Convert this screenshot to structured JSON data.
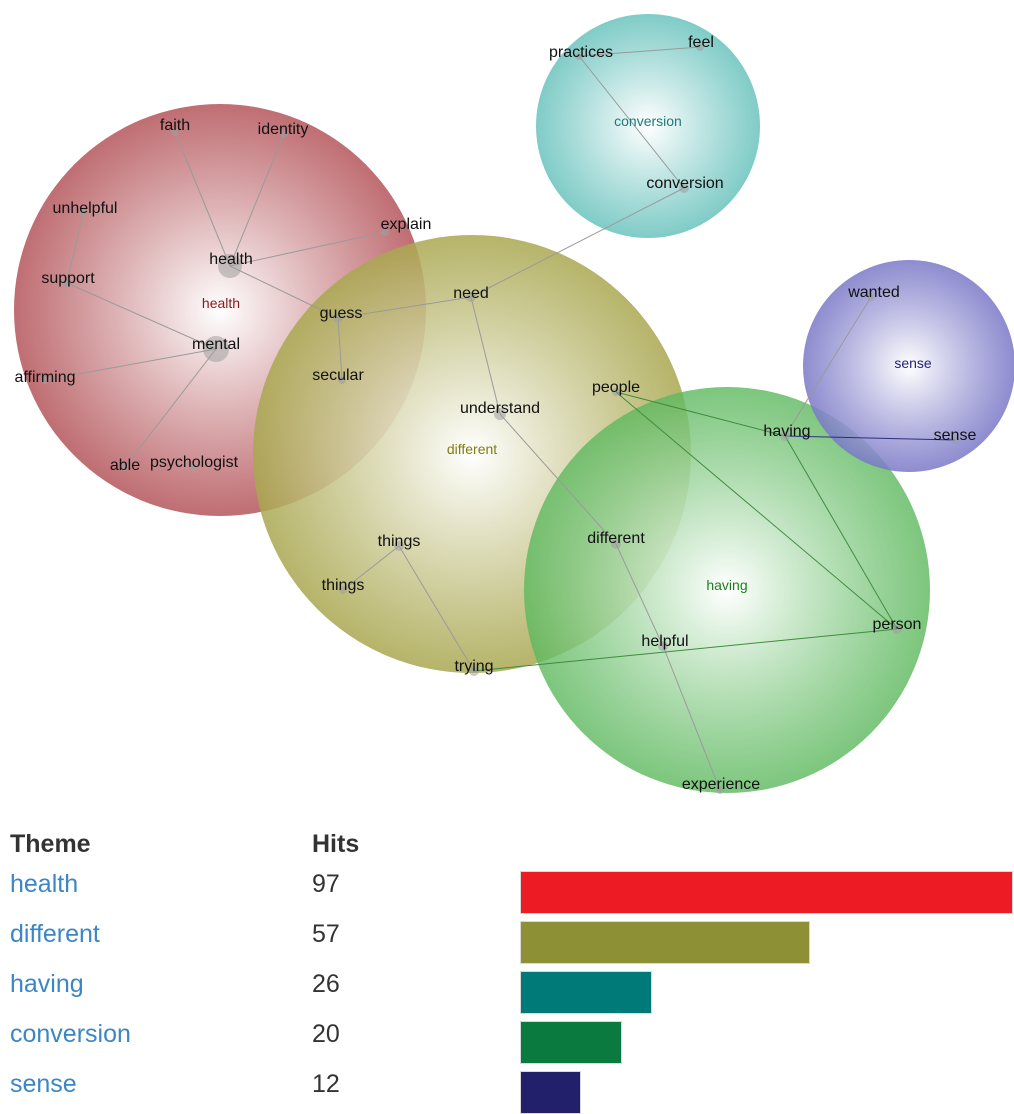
{
  "themes": [
    {
      "id": "health",
      "label": "health",
      "color": "#b85e63",
      "label_color": "#8a1818"
    },
    {
      "id": "different",
      "label": "different",
      "color": "#a7a54f",
      "label_color": "#7f7d12"
    },
    {
      "id": "having",
      "label": "having",
      "color": "#5bb85c",
      "label_color": "#1f7d1f"
    },
    {
      "id": "conversion",
      "label": "conversion",
      "color": "#75c7c2",
      "label_color": "#1c7a7a"
    },
    {
      "id": "sense",
      "label": "sense",
      "color": "#7a78c7",
      "label_color": "#23237a"
    }
  ],
  "words": {
    "faith": "faith",
    "identity": "identity",
    "unhelpful": "unhelpful",
    "explain": "explain",
    "health": "health",
    "support": "support",
    "mental": "mental",
    "affirming": "affirming",
    "able": "able",
    "psychologist": "psychologist",
    "guess": "guess",
    "secular": "secular",
    "need": "need",
    "understand": "understand",
    "people": "people",
    "having": "having",
    "sense": "sense",
    "wanted": "wanted",
    "practices": "practices",
    "feel": "feel",
    "conversion": "conversion",
    "different": "different",
    "things_1": "things",
    "things_2": "things",
    "trying": "trying",
    "helpful": "helpful",
    "person": "person",
    "experience": "experience"
  },
  "table": {
    "header_theme": "Theme",
    "header_hits": "Hits",
    "rows": [
      {
        "theme": "health",
        "hits": "97",
        "bar_color": "#ed1c24"
      },
      {
        "theme": "different",
        "hits": "57",
        "bar_color": "#8e9035"
      },
      {
        "theme": "having",
        "hits": "26",
        "bar_color": "#007a78"
      },
      {
        "theme": "conversion",
        "hits": "20",
        "bar_color": "#0b7a3f"
      },
      {
        "theme": "sense",
        "hits": "12",
        "bar_color": "#22206a"
      }
    ],
    "max_hits": 97
  }
}
